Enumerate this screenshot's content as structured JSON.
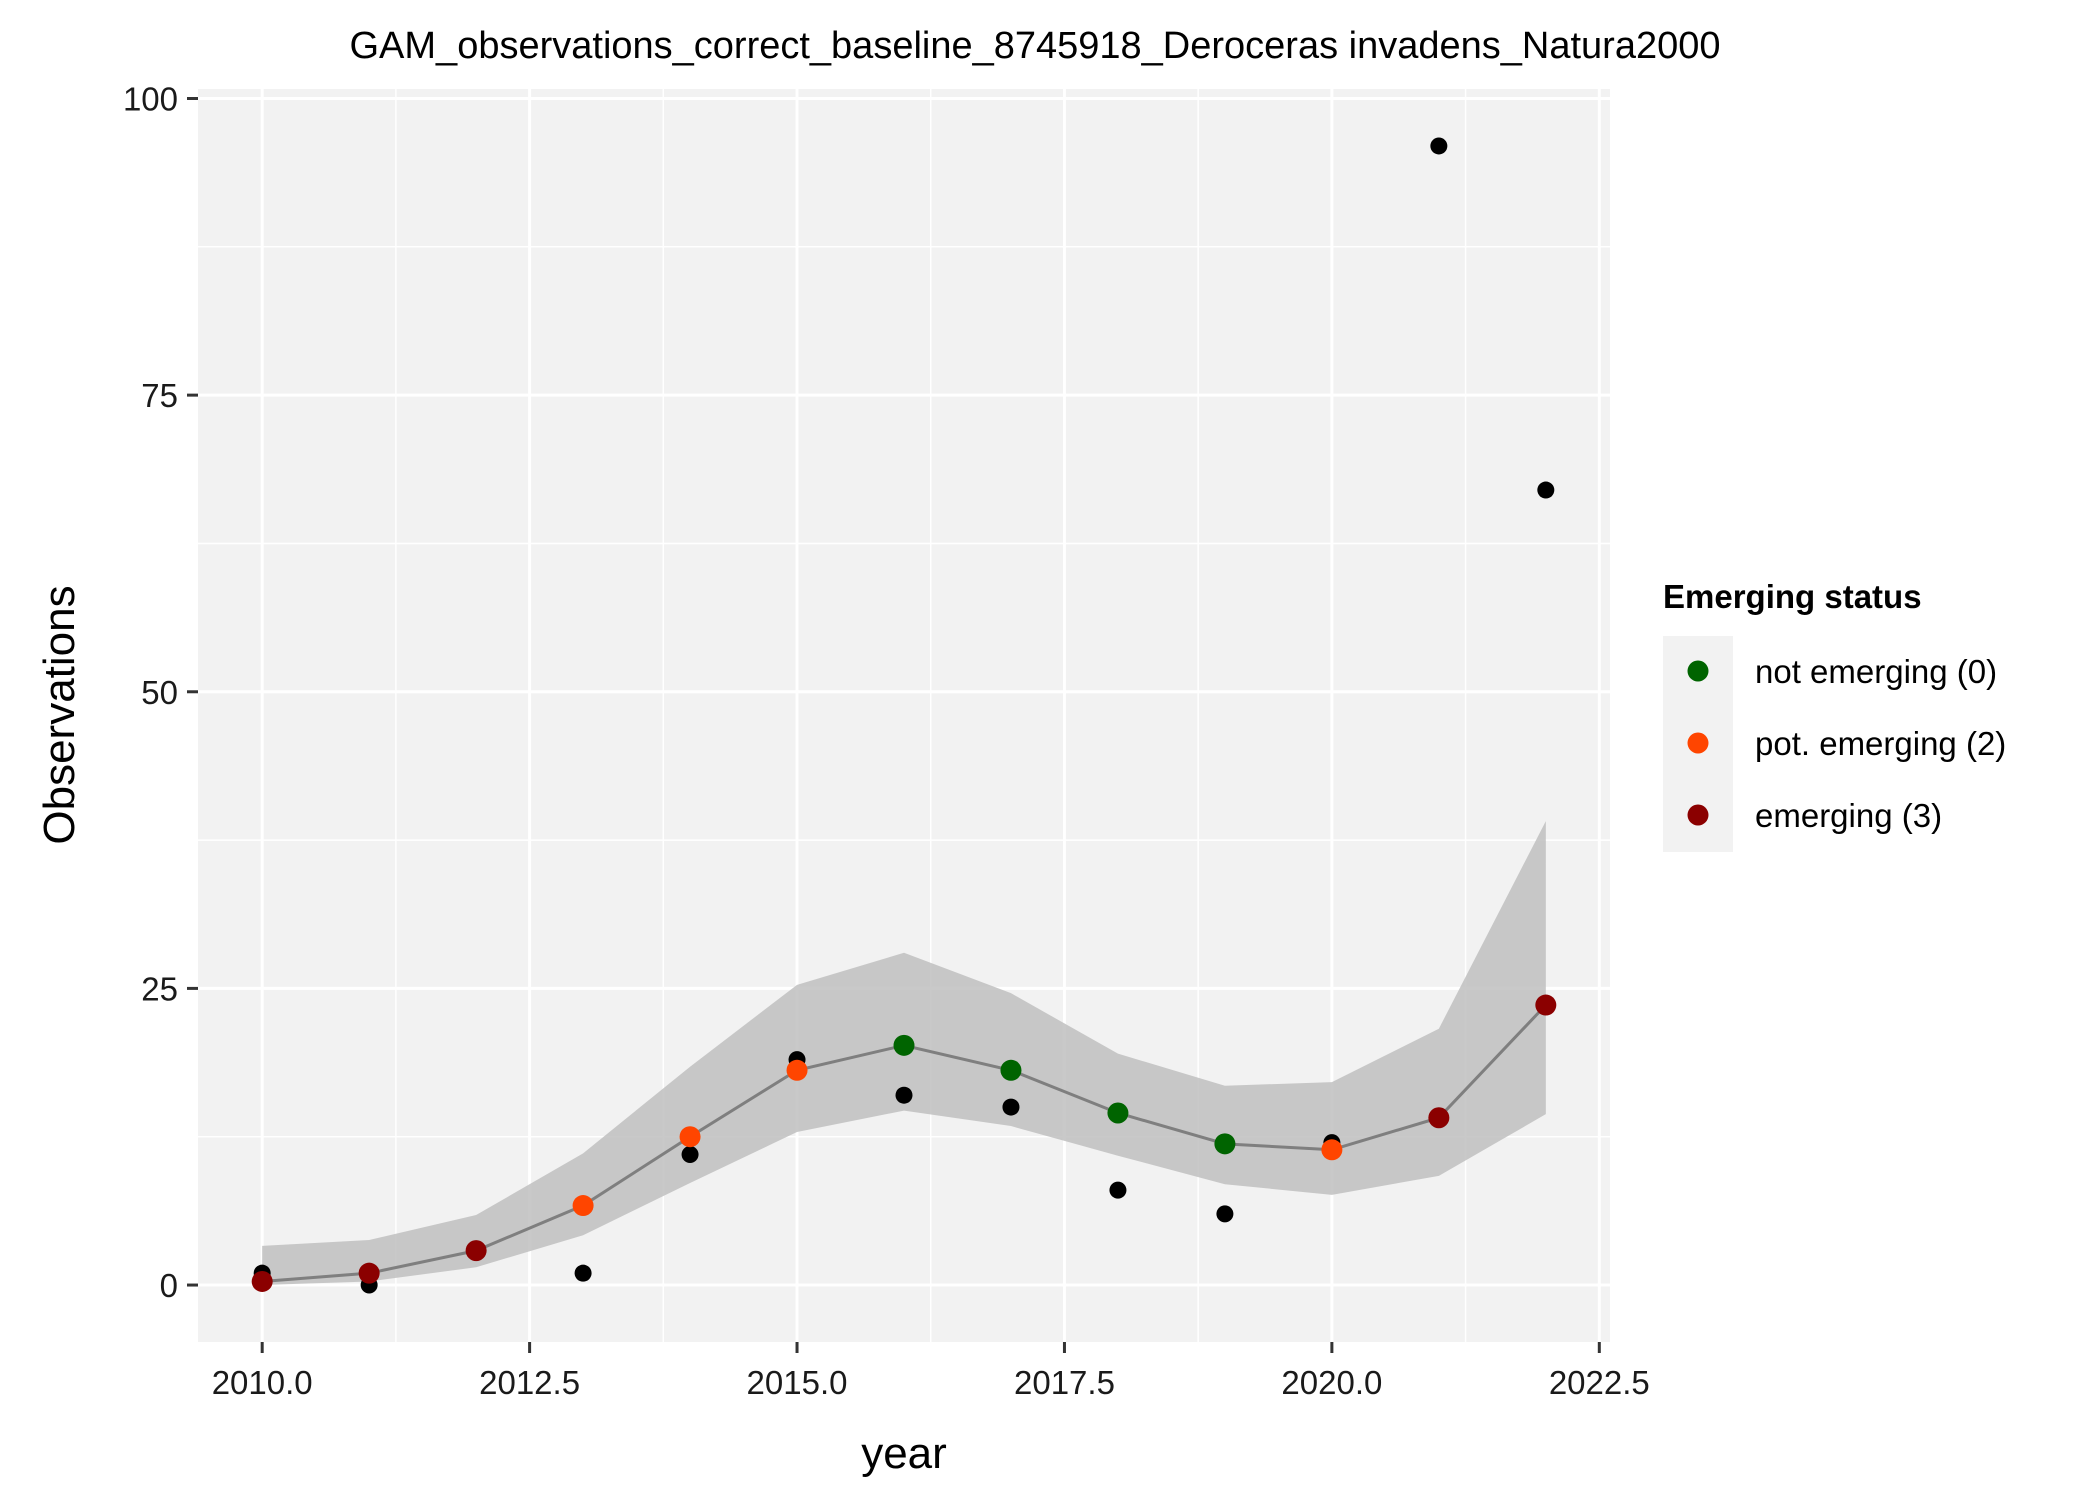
{
  "chart_data": {
    "type": "line",
    "title": "GAM_observations_correct_baseline_8745918_Deroceras invadens_Natura2000",
    "xlabel": "year",
    "ylabel": "Observations",
    "xlim": [
      2009.4,
      2022.6
    ],
    "ylim": [
      -4.8,
      100.8
    ],
    "x_ticks": [
      2010.0,
      2012.5,
      2015.0,
      2017.5,
      2020.0,
      2022.5
    ],
    "x_tick_labels": [
      "2010.0",
      "2012.5",
      "2015.0",
      "2017.5",
      "2020.0",
      "2022.5"
    ],
    "y_ticks": [
      0,
      25,
      50,
      75,
      100
    ],
    "y_tick_labels": [
      "0",
      "25",
      "50",
      "75",
      "100"
    ],
    "grid": true,
    "legend_position": "right",
    "legend": {
      "title": "Emerging status",
      "entries": [
        {
          "label": "not emerging (0)",
          "color": "#006400"
        },
        {
          "label": "pot. emerging (2)",
          "color": "#FF4500"
        },
        {
          "label": "emerging (3)",
          "color": "#8B0000"
        }
      ]
    },
    "observations": {
      "x": [
        2010,
        2011,
        2012,
        2013,
        2014,
        2015,
        2016,
        2017,
        2018,
        2019,
        2020,
        2021,
        2022
      ],
      "y": [
        1,
        0,
        3,
        1,
        11,
        19,
        16,
        15,
        8,
        6,
        12,
        96,
        67
      ],
      "color": "#000000"
    },
    "gam_fit": {
      "x": [
        2010,
        2011,
        2012,
        2013,
        2014,
        2015,
        2016,
        2017,
        2018,
        2019,
        2020,
        2021,
        2022
      ],
      "fit": [
        0.3,
        1.0,
        2.9,
        6.7,
        12.5,
        18.1,
        20.2,
        18.1,
        14.5,
        11.9,
        11.4,
        14.1,
        23.6
      ],
      "lower": [
        0.0,
        0.3,
        1.5,
        4.2,
        8.6,
        12.9,
        14.7,
        13.4,
        10.9,
        8.5,
        7.6,
        9.2,
        14.4
      ],
      "upper": [
        3.3,
        3.8,
        5.9,
        11.1,
        18.4,
        25.3,
        28.0,
        24.6,
        19.5,
        16.8,
        17.1,
        21.6,
        39.1
      ],
      "status": [
        "emerging (3)",
        "emerging (3)",
        "emerging (3)",
        "pot. emerging (2)",
        "pot. emerging (2)",
        "pot. emerging (2)",
        "not emerging (0)",
        "not emerging (0)",
        "not emerging (0)",
        "not emerging (0)",
        "pot. emerging (2)",
        "emerging (3)",
        "emerging (3)"
      ],
      "line_color": "#7f7f7f",
      "band_color": "#bfbfbf"
    },
    "panel_background": "#f2f2f2"
  }
}
